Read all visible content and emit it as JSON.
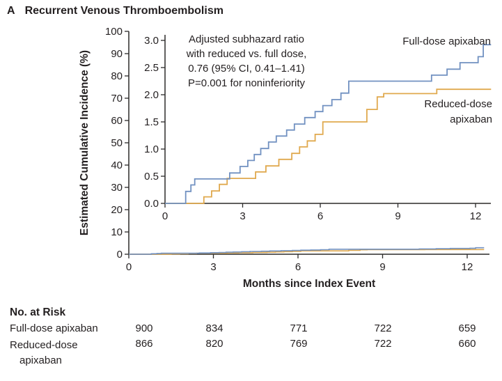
{
  "header": {
    "panel": "A",
    "title": "Recurrent Venous Thromboembolism"
  },
  "chart_data": {
    "type": "line",
    "subtype": "step-cumulative-incidence",
    "title": "Recurrent Venous Thromboembolism",
    "xlabel": "Months since Index Event",
    "ylabel": "Estimated Cumulative Incidence (%)",
    "legend_position": "inline-right",
    "grid": false,
    "main_axis": {
      "xlim": [
        0,
        12.8
      ],
      "ylim": [
        0,
        100
      ],
      "xticks": [
        0,
        3,
        6,
        9,
        12
      ],
      "yticks": [
        0,
        10,
        20,
        30,
        40,
        50,
        60,
        70,
        80,
        90,
        100
      ]
    },
    "inset_axis": {
      "xlim": [
        0,
        12.6
      ],
      "ylim": [
        0,
        3.0
      ],
      "xticks": [
        0,
        3,
        6,
        9,
        12
      ],
      "yticks": [
        0.0,
        0.5,
        1.0,
        1.5,
        2.0,
        2.5,
        3.0
      ]
    },
    "series": [
      {
        "name": "Full-dose apixaban",
        "color": "#7191c1",
        "end_x": 12.6,
        "points": [
          [
            0,
            0
          ],
          [
            0.8,
            0.22
          ],
          [
            1.0,
            0.34
          ],
          [
            1.15,
            0.45
          ],
          [
            2.5,
            0.56
          ],
          [
            2.9,
            0.68
          ],
          [
            3.2,
            0.79
          ],
          [
            3.45,
            0.9
          ],
          [
            3.7,
            1.01
          ],
          [
            4.0,
            1.13
          ],
          [
            4.3,
            1.24
          ],
          [
            4.7,
            1.35
          ],
          [
            5.0,
            1.46
          ],
          [
            5.4,
            1.58
          ],
          [
            5.8,
            1.69
          ],
          [
            6.1,
            1.8
          ],
          [
            6.45,
            1.91
          ],
          [
            6.8,
            2.03
          ],
          [
            7.1,
            2.25
          ],
          [
            10.3,
            2.36
          ],
          [
            10.9,
            2.47
          ],
          [
            11.4,
            2.59
          ],
          [
            12.1,
            2.7
          ],
          [
            12.3,
            2.92
          ]
        ]
      },
      {
        "name": "Reduced-dose apixaban",
        "color": "#e0a94e",
        "end_x": 12.6,
        "points": [
          [
            0,
            0
          ],
          [
            1.5,
            0.12
          ],
          [
            1.8,
            0.23
          ],
          [
            2.1,
            0.35
          ],
          [
            2.4,
            0.46
          ],
          [
            3.5,
            0.58
          ],
          [
            3.9,
            0.69
          ],
          [
            4.4,
            0.81
          ],
          [
            4.9,
            0.92
          ],
          [
            5.2,
            1.04
          ],
          [
            5.5,
            1.15
          ],
          [
            5.8,
            1.27
          ],
          [
            6.1,
            1.5
          ],
          [
            7.8,
            1.73
          ],
          [
            8.2,
            1.96
          ],
          [
            8.45,
            2.02
          ],
          [
            10.5,
            2.1
          ]
        ]
      }
    ],
    "annotation": {
      "lines": [
        "Adjusted subhazard ratio",
        "with reduced vs. full dose,",
        "0.76 (95% CI, 0.41–1.41)",
        "P=0.001 for noninferiority"
      ]
    }
  },
  "risk_table": {
    "heading": "No. at Risk",
    "columns_months": [
      0,
      3,
      6,
      9,
      12
    ],
    "rows": [
      {
        "label": "Full-dose apixaban",
        "values": [
          "900",
          "834",
          "771",
          "722",
          "659"
        ]
      },
      {
        "label": "Reduced-dose apixaban",
        "values": [
          "866",
          "820",
          "769",
          "722",
          "660"
        ]
      }
    ]
  }
}
